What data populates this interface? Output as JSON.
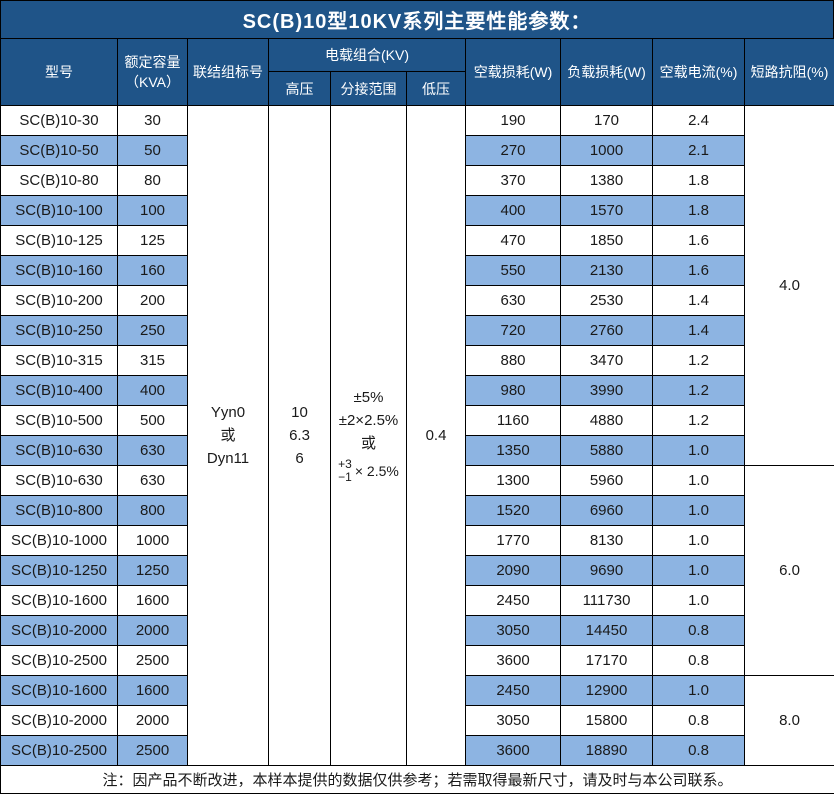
{
  "title": "SC(B)10型10KV系列主要性能参数：",
  "note": "注：因产品不断改进，本样本提供的数据仅供参考；若需取得最新尺寸，请及时与本公司联系。",
  "colors": {
    "header_bg": "#1F5488",
    "band_bg": "#8DB4E2",
    "border": "#000000"
  },
  "table": {
    "headers": {
      "model": "型号",
      "capacity": "额定容量\n（KVA）",
      "connection": "联结组标号",
      "voltage_combo": "电载组合(KV)",
      "hv": "高压",
      "tap_range": "分接范围",
      "lv": "低压",
      "noload_loss": "空载损耗(W)",
      "load_loss": "负载损耗(W)",
      "noload_current": "空载电流(%)",
      "impedance": "短路抗阻(%)"
    },
    "merged": {
      "connection": [
        "Yyn0",
        "或",
        "Dyn11"
      ],
      "hv": [
        "10",
        "6.3",
        "6"
      ],
      "tap_lines": [
        "±5%",
        "±2×2.5%",
        "或"
      ],
      "tap_stack": {
        "top": "+3",
        "bottom": "−1",
        "suffix": "× 2.5%"
      },
      "lv": "0.4"
    },
    "impedance_groups": [
      {
        "value": "4.0",
        "span": 12
      },
      {
        "value": "6.0",
        "span": 7
      },
      {
        "value": "8.0",
        "span": 3
      }
    ],
    "rows": [
      {
        "model": "SC(B)10-30",
        "kva": "30",
        "noload_loss": "190",
        "load_loss": "170",
        "noload_current": "2.4"
      },
      {
        "model": "SC(B)10-50",
        "kva": "50",
        "noload_loss": "270",
        "load_loss": "1000",
        "noload_current": "2.1"
      },
      {
        "model": "SC(B)10-80",
        "kva": "80",
        "noload_loss": "370",
        "load_loss": "1380",
        "noload_current": "1.8"
      },
      {
        "model": "SC(B)10-100",
        "kva": "100",
        "noload_loss": "400",
        "load_loss": "1570",
        "noload_current": "1.8"
      },
      {
        "model": "SC(B)10-125",
        "kva": "125",
        "noload_loss": "470",
        "load_loss": "1850",
        "noload_current": "1.6"
      },
      {
        "model": "SC(B)10-160",
        "kva": "160",
        "noload_loss": "550",
        "load_loss": "2130",
        "noload_current": "1.6"
      },
      {
        "model": "SC(B)10-200",
        "kva": "200",
        "noload_loss": "630",
        "load_loss": "2530",
        "noload_current": "1.4"
      },
      {
        "model": "SC(B)10-250",
        "kva": "250",
        "noload_loss": "720",
        "load_loss": "2760",
        "noload_current": "1.4"
      },
      {
        "model": "SC(B)10-315",
        "kva": "315",
        "noload_loss": "880",
        "load_loss": "3470",
        "noload_current": "1.2"
      },
      {
        "model": "SC(B)10-400",
        "kva": "400",
        "noload_loss": "980",
        "load_loss": "3990",
        "noload_current": "1.2"
      },
      {
        "model": "SC(B)10-500",
        "kva": "500",
        "noload_loss": "1160",
        "load_loss": "4880",
        "noload_current": "1.2"
      },
      {
        "model": "SC(B)10-630",
        "kva": "630",
        "noload_loss": "1350",
        "load_loss": "5880",
        "noload_current": "1.0"
      },
      {
        "model": "SC(B)10-630",
        "kva": "630",
        "noload_loss": "1300",
        "load_loss": "5960",
        "noload_current": "1.0"
      },
      {
        "model": "SC(B)10-800",
        "kva": "800",
        "noload_loss": "1520",
        "load_loss": "6960",
        "noload_current": "1.0"
      },
      {
        "model": "SC(B)10-1000",
        "kva": "1000",
        "noload_loss": "1770",
        "load_loss": "8130",
        "noload_current": "1.0"
      },
      {
        "model": "SC(B)10-1250",
        "kva": "1250",
        "noload_loss": "2090",
        "load_loss": "9690",
        "noload_current": "1.0"
      },
      {
        "model": "SC(B)10-1600",
        "kva": "1600",
        "noload_loss": "2450",
        "load_loss": "111730",
        "noload_current": "1.0"
      },
      {
        "model": "SC(B)10-2000",
        "kva": "2000",
        "noload_loss": "3050",
        "load_loss": "14450",
        "noload_current": "0.8"
      },
      {
        "model": "SC(B)10-2500",
        "kva": "2500",
        "noload_loss": "3600",
        "load_loss": "17170",
        "noload_current": "0.8"
      },
      {
        "model": "SC(B)10-1600",
        "kva": "1600",
        "noload_loss": "2450",
        "load_loss": "12900",
        "noload_current": "1.0"
      },
      {
        "model": "SC(B)10-2000",
        "kva": "2000",
        "noload_loss": "3050",
        "load_loss": "15800",
        "noload_current": "0.8"
      },
      {
        "model": "SC(B)10-2500",
        "kva": "2500",
        "noload_loss": "3600",
        "load_loss": "18890",
        "noload_current": "0.8"
      }
    ]
  }
}
